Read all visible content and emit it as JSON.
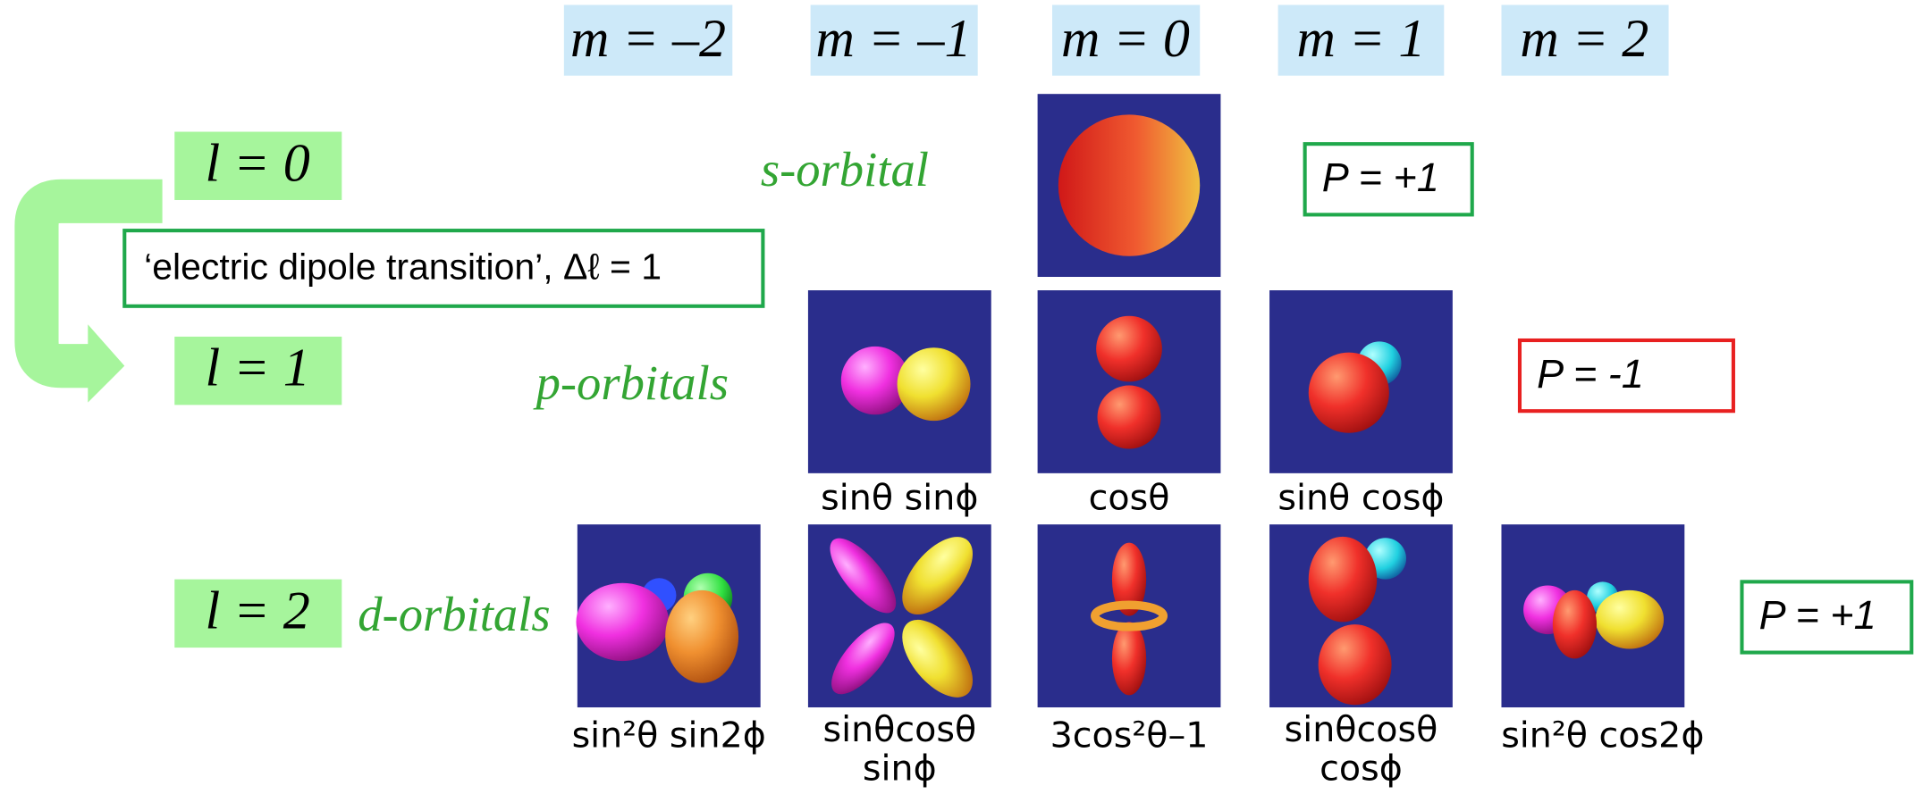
{
  "m_headers": [
    "m = –2",
    "m = –1",
    "m = 0",
    "m = 1",
    "m = 2"
  ],
  "levels": [
    {
      "l": "l = 0",
      "name": "s-orbital",
      "parity": "P = +1"
    },
    {
      "l": "l = 1",
      "name": "p-orbitals",
      "parity": "P = -1"
    },
    {
      "l": "l = 2",
      "name": "d-orbitals",
      "parity": "P = +1"
    }
  ],
  "transition": "‘electric dipole transition’, Δℓ = 1",
  "functions": {
    "p": [
      "sinθ sinϕ",
      "cosθ",
      "sinθ cosϕ"
    ],
    "d": [
      [
        "sin²θ sin2ϕ"
      ],
      [
        "sinθcosθ",
        "sinϕ"
      ],
      [
        "3cos²θ–1"
      ],
      [
        "sinθcosθ",
        "cosϕ"
      ],
      [
        "sin²θ cos2ϕ"
      ]
    ]
  }
}
